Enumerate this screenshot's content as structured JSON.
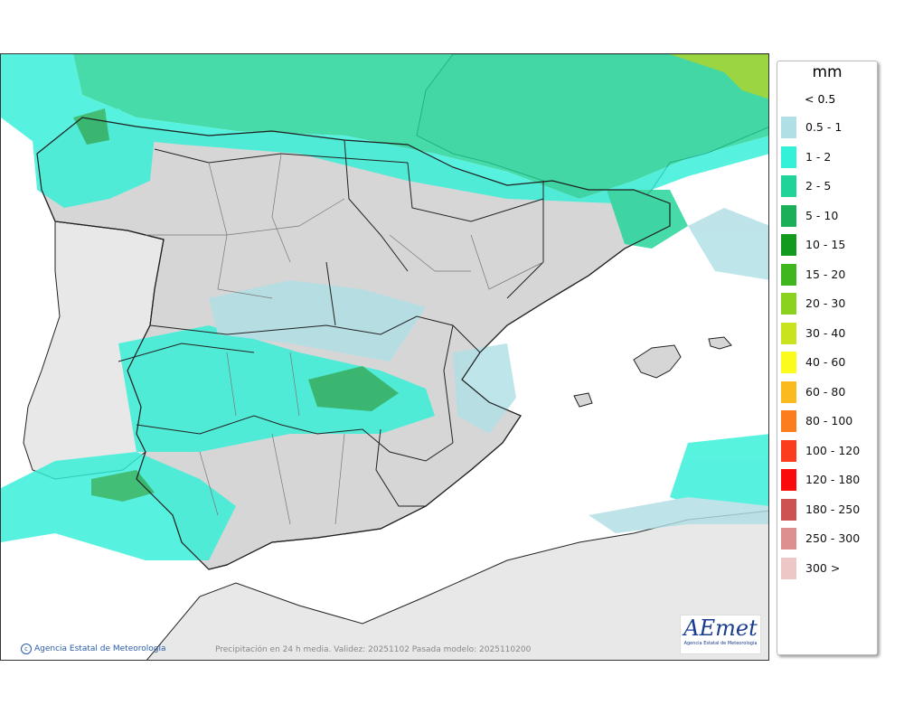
{
  "map": {
    "footer_text": "Precipitación en 24 h media. Validez: 20251102 Pasada modelo: 2025110200",
    "credit_text": "Agencia Estatal de Meteorología",
    "logo_text": "AEmet",
    "logo_subtext": "Agencia Estatal de Meteorología",
    "colors": {
      "sea": "#ffffff",
      "land_outside": "#e8e8e8",
      "spain_land": "#d6d6d6"
    }
  },
  "legend": {
    "unit": "mm",
    "lowest": "< 0.5",
    "items": [
      {
        "label": "0.5 - 1",
        "color": "#b0dfe5"
      },
      {
        "label": "1 - 2",
        "color": "#33f0d8"
      },
      {
        "label": "2 - 5",
        "color": "#1fd498"
      },
      {
        "label": "5 - 10",
        "color": "#1ab05a"
      },
      {
        "label": "10 - 15",
        "color": "#119a1e"
      },
      {
        "label": "15 - 20",
        "color": "#3fb51e"
      },
      {
        "label": "20 - 30",
        "color": "#8bd21e"
      },
      {
        "label": "30 - 40",
        "color": "#c9e31e"
      },
      {
        "label": "40 - 60",
        "color": "#fbfb1e"
      },
      {
        "label": "60 - 80",
        "color": "#fbbb1e"
      },
      {
        "label": "80 - 100",
        "color": "#fb7d1e"
      },
      {
        "label": "100 - 120",
        "color": "#fb3d1e"
      },
      {
        "label": "120 - 180",
        "color": "#fb0a0a"
      },
      {
        "label": "180 - 250",
        "color": "#cd5353"
      },
      {
        "label": "250 - 300",
        "color": "#dd8f8f"
      },
      {
        "label": "300 >",
        "color": "#edc6c6"
      }
    ]
  }
}
